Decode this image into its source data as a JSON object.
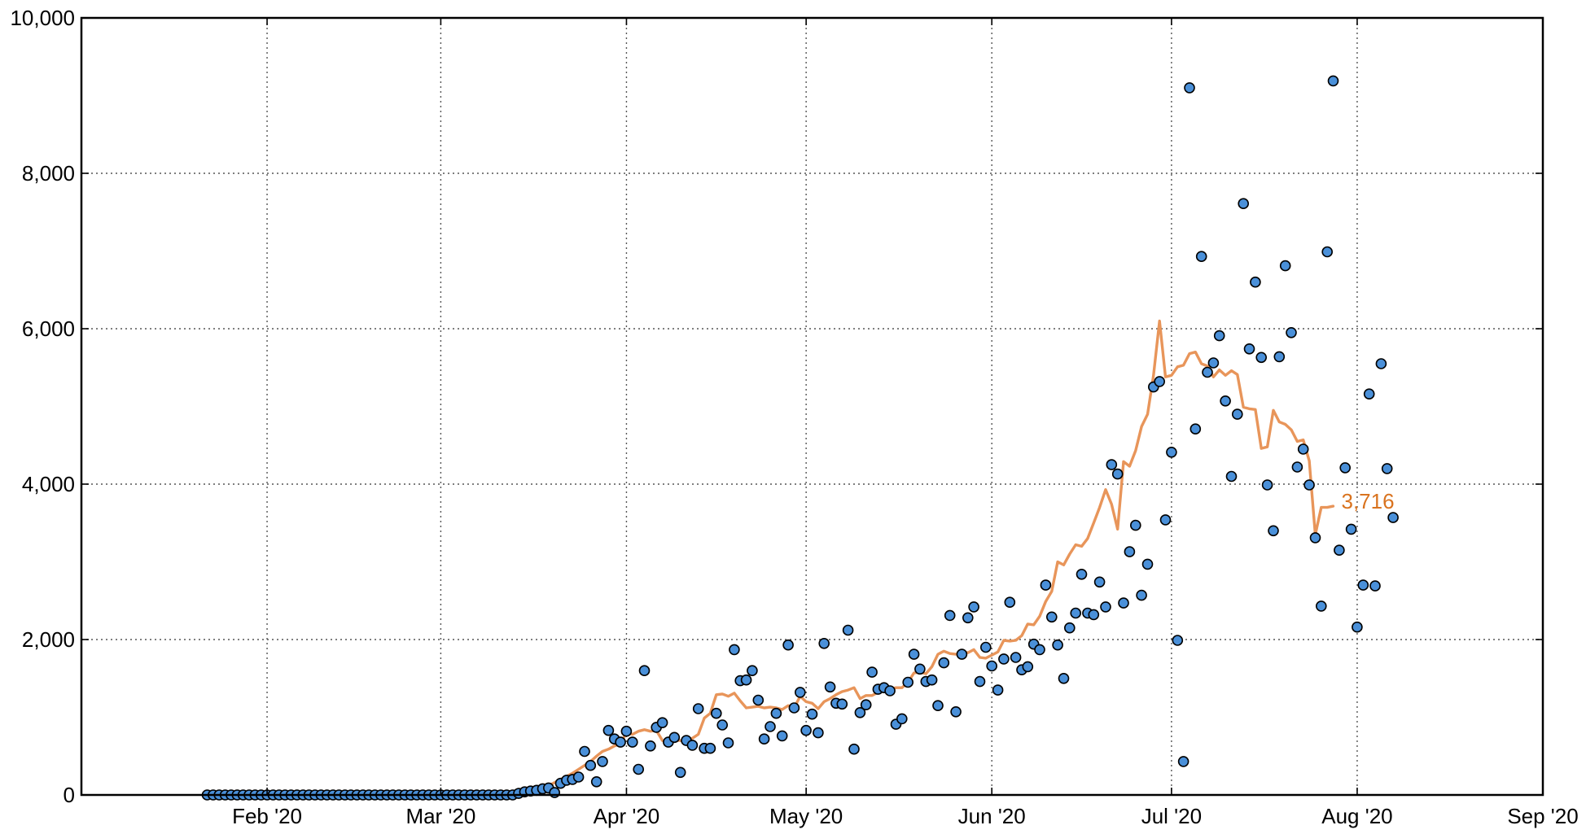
{
  "chart_data": {
    "type": "scatter",
    "title": "",
    "xlabel": "",
    "ylabel": "",
    "xlim": [
      "2020-01-01",
      "2020-09-01"
    ],
    "ylim": [
      0,
      10000
    ],
    "grid": true,
    "legend": "none",
    "x_ticks": [
      {
        "date": "2020-02-01",
        "label": "Feb '20"
      },
      {
        "date": "2020-03-01",
        "label": "Mar '20"
      },
      {
        "date": "2020-04-01",
        "label": "Apr '20"
      },
      {
        "date": "2020-05-01",
        "label": "May '20"
      },
      {
        "date": "2020-06-01",
        "label": "Jun '20"
      },
      {
        "date": "2020-07-01",
        "label": "Jul '20"
      },
      {
        "date": "2020-08-01",
        "label": "Aug '20"
      },
      {
        "date": "2020-09-01",
        "label": "Sep '20"
      }
    ],
    "y_ticks": [
      {
        "value": 0,
        "label": "0"
      },
      {
        "value": 2000,
        "label": "2,000"
      },
      {
        "value": 4000,
        "label": "4,000"
      },
      {
        "value": 6000,
        "label": "6,000"
      },
      {
        "value": 8000,
        "label": "8,000"
      },
      {
        "value": 10000,
        "label": "10,000"
      }
    ],
    "end_label": "3,716",
    "colors": {
      "points": "#4a90d9",
      "average": "#e8955a",
      "end_label": "#d9731f"
    },
    "series": [
      {
        "kind": "points",
        "start_date": "2020-01-22",
        "values": [
          0,
          0,
          0,
          0,
          0,
          0,
          0,
          0,
          0,
          0,
          0,
          0,
          0,
          0,
          0,
          0,
          0,
          0,
          0,
          0,
          0,
          0,
          0,
          0,
          0,
          0,
          0,
          0,
          0,
          0,
          0,
          0,
          0,
          0,
          0,
          0,
          0,
          0,
          0,
          0,
          0,
          0,
          0,
          0,
          0,
          0,
          0,
          0,
          0,
          0,
          0,
          0,
          20,
          40,
          50,
          60,
          80,
          90,
          30,
          150,
          190,
          200,
          230,
          560,
          380,
          170,
          430,
          830,
          720,
          680,
          820,
          680,
          330,
          1600,
          630,
          870,
          930,
          680,
          740,
          290,
          700,
          640,
          1110,
          600,
          600,
          1050,
          900,
          670,
          1870,
          1470,
          1480,
          1600,
          1220,
          720,
          880,
          1050,
          760,
          1930,
          1120,
          1320,
          830,
          1040,
          800,
          1950,
          1390,
          1180,
          1170,
          2120,
          590,
          1060,
          1160,
          1580,
          1360,
          1380,
          1340,
          910,
          980,
          1450,
          1810,
          1620,
          1460,
          1480,
          1150,
          1700,
          2310,
          1070,
          1810,
          2280,
          2420,
          1460,
          1900,
          1660,
          1350,
          1750,
          2480,
          1770,
          1610,
          1650,
          1940,
          1870,
          2700,
          2290,
          1930,
          1500,
          2150,
          2340,
          2840,
          2340,
          2320,
          2740,
          2420,
          4250,
          4130,
          2470,
          3130,
          3470,
          2570,
          2970,
          5250,
          5320,
          3540,
          4410,
          1990,
          430,
          9100,
          4710,
          6930,
          5440,
          5560,
          5910,
          5070,
          4100,
          4900,
          7610,
          5740,
          6600,
          5630,
          3990,
          3400,
          5640,
          6810,
          5950,
          4220,
          4450,
          3990,
          3310,
          2430,
          6990,
          9190,
          3150,
          4210,
          3420,
          2160,
          2700,
          5160,
          2690,
          5550,
          4200,
          3570
        ]
      },
      {
        "kind": "line",
        "start_date": "2020-03-10",
        "values": [
          0,
          5,
          10,
          15,
          25,
          35,
          50,
          65,
          85,
          120,
          160,
          200,
          240,
          280,
          330,
          380,
          430,
          500,
          560,
          590,
          630,
          660,
          800,
          780,
          820,
          840,
          820,
          830,
          700,
          660,
          700,
          700,
          680,
          730,
          780,
          990,
          1050,
          1290,
          1300,
          1270,
          1310,
          1210,
          1120,
          1130,
          1140,
          1120,
          1130,
          1120,
          1100,
          1150,
          1120,
          1270,
          1200,
          1180,
          1110,
          1200,
          1240,
          1290,
          1330,
          1350,
          1380,
          1240,
          1280,
          1280,
          1320,
          1340,
          1360,
          1380,
          1380,
          1450,
          1570,
          1580,
          1560,
          1650,
          1810,
          1850,
          1820,
          1810,
          1840,
          1830,
          1870,
          1770,
          1760,
          1800,
          1840,
          1990,
          1980,
          1990,
          2050,
          2200,
          2190,
          2300,
          2490,
          2620,
          3000,
          2960,
          3100,
          3220,
          3200,
          3300,
          3500,
          3700,
          3930,
          3740,
          3420,
          4290,
          4230,
          4430,
          4740,
          4900,
          5400,
          6100,
          5380,
          5400,
          5510,
          5530,
          5680,
          5700,
          5550,
          5520,
          5380,
          5470,
          5400,
          5460,
          5410,
          4990,
          4970,
          4960,
          4460,
          4480,
          4950,
          4800,
          4770,
          4700,
          4550,
          4570,
          4300,
          3350,
          3700,
          3700,
          3716
        ]
      }
    ]
  }
}
